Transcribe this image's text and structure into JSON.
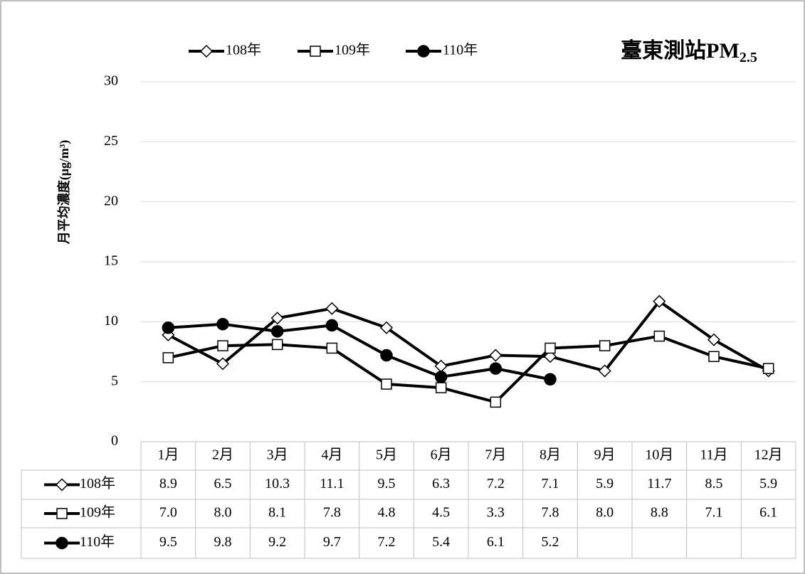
{
  "chart_data": {
    "type": "line",
    "title": [
      "臺東測站PM",
      "2.5"
    ],
    "y_label": "月平均濃度(μg/m³)",
    "categories": [
      "1月",
      "2月",
      "3月",
      "4月",
      "5月",
      "6月",
      "7月",
      "8月",
      "9月",
      "10月",
      "11月",
      "12月"
    ],
    "series": [
      {
        "name": "108年",
        "color": "#000000",
        "marker": "diamond",
        "marker_fill": "#ffffff",
        "values": [
          8.9,
          6.5,
          10.3,
          11.1,
          9.5,
          6.3,
          7.2,
          7.1,
          5.9,
          11.7,
          8.5,
          5.9
        ],
        "value_labels": [
          "8.9",
          "6.5",
          "10.3",
          "11.1",
          "9.5",
          "6.3",
          "7.2",
          "7.1",
          "5.9",
          "11.7",
          "8.5",
          "5.9"
        ]
      },
      {
        "name": "109年",
        "color": "#000000",
        "marker": "square",
        "marker_fill": "#ffffff",
        "values": [
          7.0,
          8.0,
          8.1,
          7.8,
          4.8,
          4.5,
          3.3,
          7.8,
          8.0,
          8.8,
          7.1,
          6.1
        ],
        "value_labels": [
          "7.0",
          "8.0",
          "8.1",
          "7.8",
          "4.8",
          "4.5",
          "3.3",
          "7.8",
          "8.0",
          "8.8",
          "7.1",
          "6.1"
        ]
      },
      {
        "name": "110年",
        "color": "#000000",
        "marker": "circle",
        "marker_fill": "#000000",
        "values": [
          9.5,
          9.8,
          9.2,
          9.7,
          7.2,
          5.4,
          6.1,
          5.2,
          null,
          null,
          null,
          null
        ],
        "value_labels": [
          "9.5",
          "9.8",
          "9.2",
          "9.7",
          "7.2",
          "5.4",
          "6.1",
          "5.2",
          null,
          null,
          null,
          null
        ]
      }
    ],
    "ylim": [
      0,
      30
    ],
    "yticks": [
      0,
      5,
      10,
      15,
      20,
      25,
      30
    ],
    "grid": true,
    "legend": "top"
  }
}
